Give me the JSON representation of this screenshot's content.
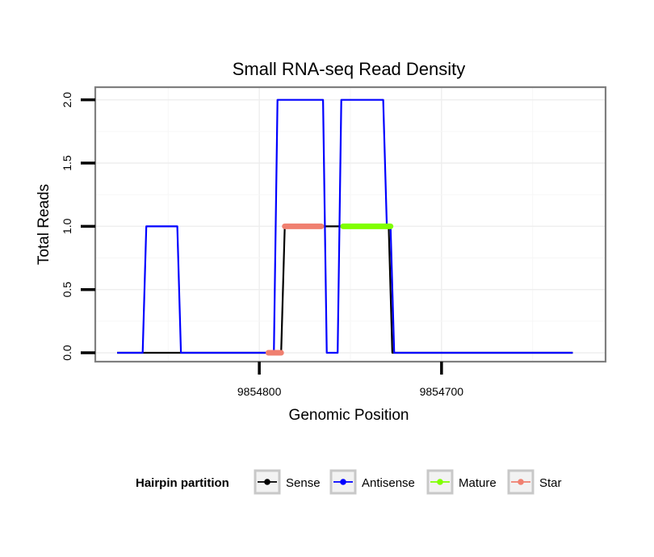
{
  "chart_data": {
    "type": "line",
    "title": "Small RNA-seq Read Density",
    "xlabel": "Genomic Position",
    "ylabel": "Total Reads",
    "x_reversed": true,
    "xlim": [
      9854890,
      9854610
    ],
    "ylim": [
      -0.07,
      2.1
    ],
    "x_ticks": [
      {
        "value": 9854800,
        "label": "9854800"
      },
      {
        "value": 9854700,
        "label": "9854700"
      }
    ],
    "y_ticks": [
      {
        "value": 0,
        "label": "0.0"
      },
      {
        "value": 0.5,
        "label": "0.5"
      },
      {
        "value": 1,
        "label": "1.0"
      },
      {
        "value": 1.5,
        "label": "1.5"
      },
      {
        "value": 2,
        "label": "2.0"
      }
    ],
    "series": [
      {
        "name": "Sense",
        "color": "#000000",
        "x": [
          9854878,
          9854788,
          9854786,
          9854729,
          9854727,
          9854628
        ],
        "y": [
          0,
          0,
          1,
          1,
          0,
          0
        ]
      },
      {
        "name": "Antisense",
        "color": "#0000ff",
        "x": [
          9854878,
          9854864,
          9854862,
          9854845,
          9854843,
          9854792,
          9854790,
          9854765,
          9854763,
          9854757,
          9854755,
          9854732,
          9854730,
          9854728,
          9854726,
          9854628
        ],
        "y": [
          0,
          0,
          1,
          1,
          0,
          0,
          2,
          2,
          0,
          0,
          2,
          2,
          1,
          1,
          0,
          0
        ]
      },
      {
        "name": "Mature",
        "color": "#80ff00",
        "x": [
          9854754,
          9854728
        ],
        "y": [
          1,
          1
        ]
      },
      {
        "name": "Star",
        "color": "#f08070",
        "segments": [
          {
            "x": [
              9854795,
              9854788
            ],
            "y": [
              0,
              0
            ]
          },
          {
            "x": [
              9854786,
              9854766
            ],
            "y": [
              1,
              1
            ]
          }
        ]
      }
    ],
    "legend": {
      "title": "Hairpin partition",
      "position": "bottom",
      "entries": [
        {
          "label": "Sense",
          "color": "#000000"
        },
        {
          "label": "Antisense",
          "color": "#0000ff"
        },
        {
          "label": "Mature",
          "color": "#80ff00"
        },
        {
          "label": "Star",
          "color": "#f08070"
        }
      ]
    }
  }
}
